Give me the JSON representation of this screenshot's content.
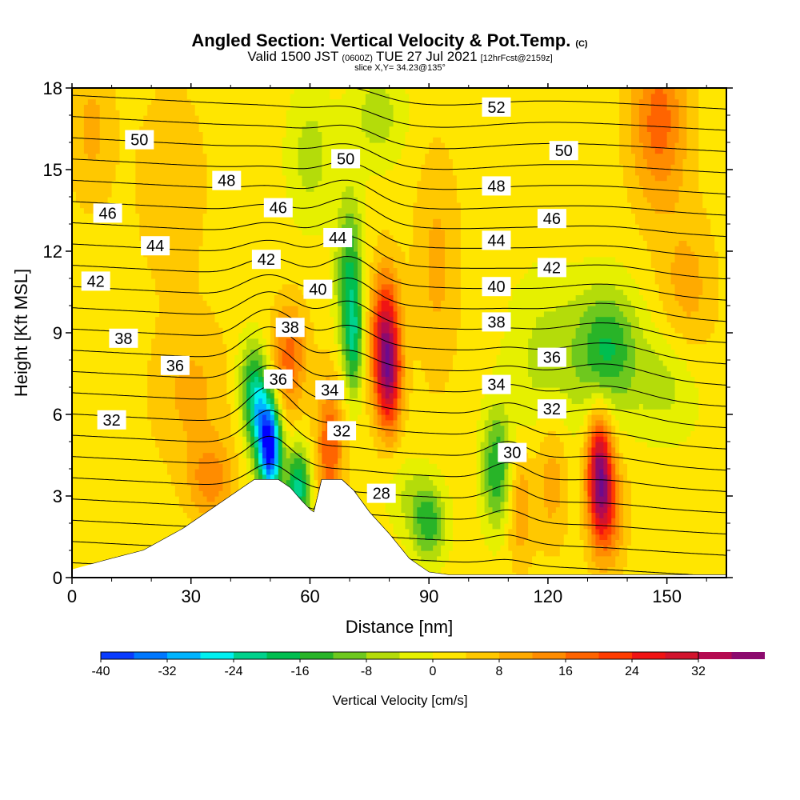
{
  "title": {
    "line1_main": "Angled Section: Vertical Velocity & Pot.Temp.",
    "line1_tag": "(C)",
    "line2_a": "Valid 1500 JST",
    "line2_b": "(0600Z)",
    "line2_c": "TUE 27 Jul 2021",
    "line2_d": "[12hrFcst@2159z]",
    "line3": "slice X,Y= 34.23@135°"
  },
  "chart_data": {
    "type": "heatmap",
    "xlabel": "Distance [nm]",
    "ylabel": "Height [Kft MSL]",
    "xlim": [
      0,
      165
    ],
    "ylim": [
      0,
      18
    ],
    "x_ticks": [
      0,
      30,
      60,
      90,
      120,
      150
    ],
    "x_tick_labels": [
      "0",
      "30",
      "60",
      "90",
      "120",
      "150"
    ],
    "y_ticks": [
      0,
      3,
      6,
      9,
      12,
      15,
      18
    ],
    "y_tick_labels": [
      "0",
      "3",
      "6",
      "9",
      "12",
      "15",
      "18"
    ],
    "grid": false,
    "colorbar": {
      "title": "Vertical Velocity [cm/s]",
      "placement": "bottom",
      "min": -40,
      "max": 32,
      "step": 4,
      "tick_values": [
        -40,
        -32,
        -24,
        -16,
        -8,
        0,
        8,
        16,
        24,
        32
      ],
      "tick_labels": [
        "-40",
        "-32",
        "-24",
        "-16",
        "-8",
        "0",
        "8",
        "16",
        "24",
        "32"
      ],
      "colors": [
        "#0000ff",
        "#0a3cff",
        "#0078ff",
        "#00b4ff",
        "#00f0f0",
        "#00d28c",
        "#00be50",
        "#28b428",
        "#6ec81e",
        "#b4dc0a",
        "#e6f000",
        "#ffe600",
        "#ffc800",
        "#ffaa00",
        "#ff8c00",
        "#ff6400",
        "#ff3c00",
        "#f01414",
        "#d2142d",
        "#b40a50",
        "#8c0a6e",
        "#6e0a8c"
      ]
    },
    "velocity_background_cms": 2,
    "velocity_features": [
      {
        "x": 50,
        "y": 4.8,
        "sx": 2.0,
        "sy": 1.3,
        "value": -42
      },
      {
        "x": 47,
        "y": 6.0,
        "sx": 2.2,
        "sy": 1.3,
        "value": -20
      },
      {
        "x": 57,
        "y": 3.3,
        "sx": 2.2,
        "sy": 1.1,
        "value": -24
      },
      {
        "x": 45,
        "y": 7.2,
        "sx": 2.5,
        "sy": 1.2,
        "value": -12
      },
      {
        "x": 55,
        "y": 8.6,
        "sx": 3.0,
        "sy": 1.2,
        "value": 12
      },
      {
        "x": 54,
        "y": 7.0,
        "sx": 3.2,
        "sy": 1.2,
        "value": 8
      },
      {
        "x": 65,
        "y": 4.8,
        "sx": 2.4,
        "sy": 1.8,
        "value": 18
      },
      {
        "x": 70,
        "y": 11.0,
        "sx": 2.4,
        "sy": 2.2,
        "value": -18
      },
      {
        "x": 71,
        "y": 8.6,
        "sx": 1.6,
        "sy": 1.4,
        "value": -14
      },
      {
        "x": 79,
        "y": 8.8,
        "sx": 2.6,
        "sy": 1.7,
        "value": 30
      },
      {
        "x": 80,
        "y": 7.0,
        "sx": 2.2,
        "sy": 1.3,
        "value": 18
      },
      {
        "x": 60,
        "y": 15.5,
        "sx": 4.0,
        "sy": 1.8,
        "value": -8
      },
      {
        "x": 77,
        "y": 17.0,
        "sx": 5.0,
        "sy": 1.3,
        "value": -8
      },
      {
        "x": 90,
        "y": 2.0,
        "sx": 3.0,
        "sy": 1.0,
        "value": -16
      },
      {
        "x": 85,
        "y": 3.0,
        "sx": 4.0,
        "sy": 1.0,
        "value": -6
      },
      {
        "x": 107,
        "y": 4.0,
        "sx": 2.6,
        "sy": 1.5,
        "value": -18
      },
      {
        "x": 113,
        "y": 2.6,
        "sx": 2.2,
        "sy": 1.5,
        "value": 10
      },
      {
        "x": 121,
        "y": 3.8,
        "sx": 2.8,
        "sy": 1.8,
        "value": 9
      },
      {
        "x": 133,
        "y": 4.0,
        "sx": 2.2,
        "sy": 1.5,
        "value": 32
      },
      {
        "x": 135,
        "y": 2.4,
        "sx": 3.0,
        "sy": 1.4,
        "value": 16
      },
      {
        "x": 135,
        "y": 8.4,
        "sx": 5.5,
        "sy": 1.6,
        "value": -18
      },
      {
        "x": 120,
        "y": 8.0,
        "sx": 7.0,
        "sy": 2.2,
        "value": -8
      },
      {
        "x": 150,
        "y": 7.2,
        "sx": 6.0,
        "sy": 1.5,
        "value": -8
      },
      {
        "x": 148,
        "y": 16.8,
        "sx": 5.0,
        "sy": 2.2,
        "value": 16
      },
      {
        "x": 30,
        "y": 6.8,
        "sx": 7.0,
        "sy": 2.0,
        "value": 7
      },
      {
        "x": 35,
        "y": 3.6,
        "sx": 4.0,
        "sy": 1.0,
        "value": 12
      },
      {
        "x": 25,
        "y": 14.5,
        "sx": 6.0,
        "sy": 2.5,
        "value": 6
      },
      {
        "x": 5,
        "y": 16.5,
        "sx": 4.0,
        "sy": 2.0,
        "value": 7
      },
      {
        "x": 155,
        "y": 10.5,
        "sx": 5.0,
        "sy": 2.0,
        "value": 8
      },
      {
        "x": 92,
        "y": 11.5,
        "sx": 4.0,
        "sy": 3.0,
        "value": 7
      }
    ],
    "terrain_profile": [
      [
        0,
        0.3
      ],
      [
        10,
        0.7
      ],
      [
        18,
        1.0
      ],
      [
        28,
        1.8
      ],
      [
        38,
        2.8
      ],
      [
        43,
        3.3
      ],
      [
        46,
        3.6
      ],
      [
        52,
        3.6
      ],
      [
        55,
        3.3
      ],
      [
        58,
        2.8
      ],
      [
        60,
        2.5
      ],
      [
        61,
        2.4
      ],
      [
        62,
        3.0
      ],
      [
        63,
        3.6
      ],
      [
        68,
        3.6
      ],
      [
        71,
        3.2
      ],
      [
        75,
        2.4
      ],
      [
        80,
        1.6
      ],
      [
        85,
        0.7
      ],
      [
        90,
        0.2
      ],
      [
        95,
        0.1
      ],
      [
        165,
        0.1
      ]
    ],
    "isentrope_levels": [
      28,
      29,
      30,
      31,
      32,
      33,
      34,
      35,
      36,
      37,
      38,
      39,
      40,
      41,
      42,
      43,
      44,
      45,
      46,
      47,
      48,
      49,
      50,
      51,
      52
    ],
    "isentrope_label_every": 2,
    "contour_labels": [
      {
        "value": "52",
        "x": 107,
        "y": 17.3
      },
      {
        "value": "50",
        "x": 17,
        "y": 16.1
      },
      {
        "value": "50",
        "x": 69,
        "y": 15.4
      },
      {
        "value": "50",
        "x": 124,
        "y": 15.7
      },
      {
        "value": "48",
        "x": 39,
        "y": 14.6
      },
      {
        "value": "48",
        "x": 107,
        "y": 14.4
      },
      {
        "value": "46",
        "x": 9,
        "y": 13.4
      },
      {
        "value": "46",
        "x": 52,
        "y": 13.6
      },
      {
        "value": "46",
        "x": 121,
        "y": 13.2
      },
      {
        "value": "44",
        "x": 21,
        "y": 12.2
      },
      {
        "value": "44",
        "x": 67,
        "y": 12.5
      },
      {
        "value": "44",
        "x": 107,
        "y": 12.4
      },
      {
        "value": "42",
        "x": 6,
        "y": 10.9
      },
      {
        "value": "42",
        "x": 49,
        "y": 11.7
      },
      {
        "value": "42",
        "x": 121,
        "y": 11.4
      },
      {
        "value": "40",
        "x": 62,
        "y": 10.6
      },
      {
        "value": "40",
        "x": 107,
        "y": 10.7
      },
      {
        "value": "38",
        "x": 13,
        "y": 8.8
      },
      {
        "value": "38",
        "x": 55,
        "y": 9.2
      },
      {
        "value": "38",
        "x": 107,
        "y": 9.4
      },
      {
        "value": "36",
        "x": 26,
        "y": 7.8
      },
      {
        "value": "36",
        "x": 52,
        "y": 7.3
      },
      {
        "value": "36",
        "x": 121,
        "y": 8.1
      },
      {
        "value": "34",
        "x": 65,
        "y": 6.9
      },
      {
        "value": "34",
        "x": 107,
        "y": 7.1
      },
      {
        "value": "32",
        "x": 10,
        "y": 5.8
      },
      {
        "value": "32",
        "x": 68,
        "y": 5.4
      },
      {
        "value": "32",
        "x": 121,
        "y": 6.2
      },
      {
        "value": "30",
        "x": 111,
        "y": 4.6
      },
      {
        "value": "28",
        "x": 78,
        "y": 3.1
      }
    ]
  }
}
